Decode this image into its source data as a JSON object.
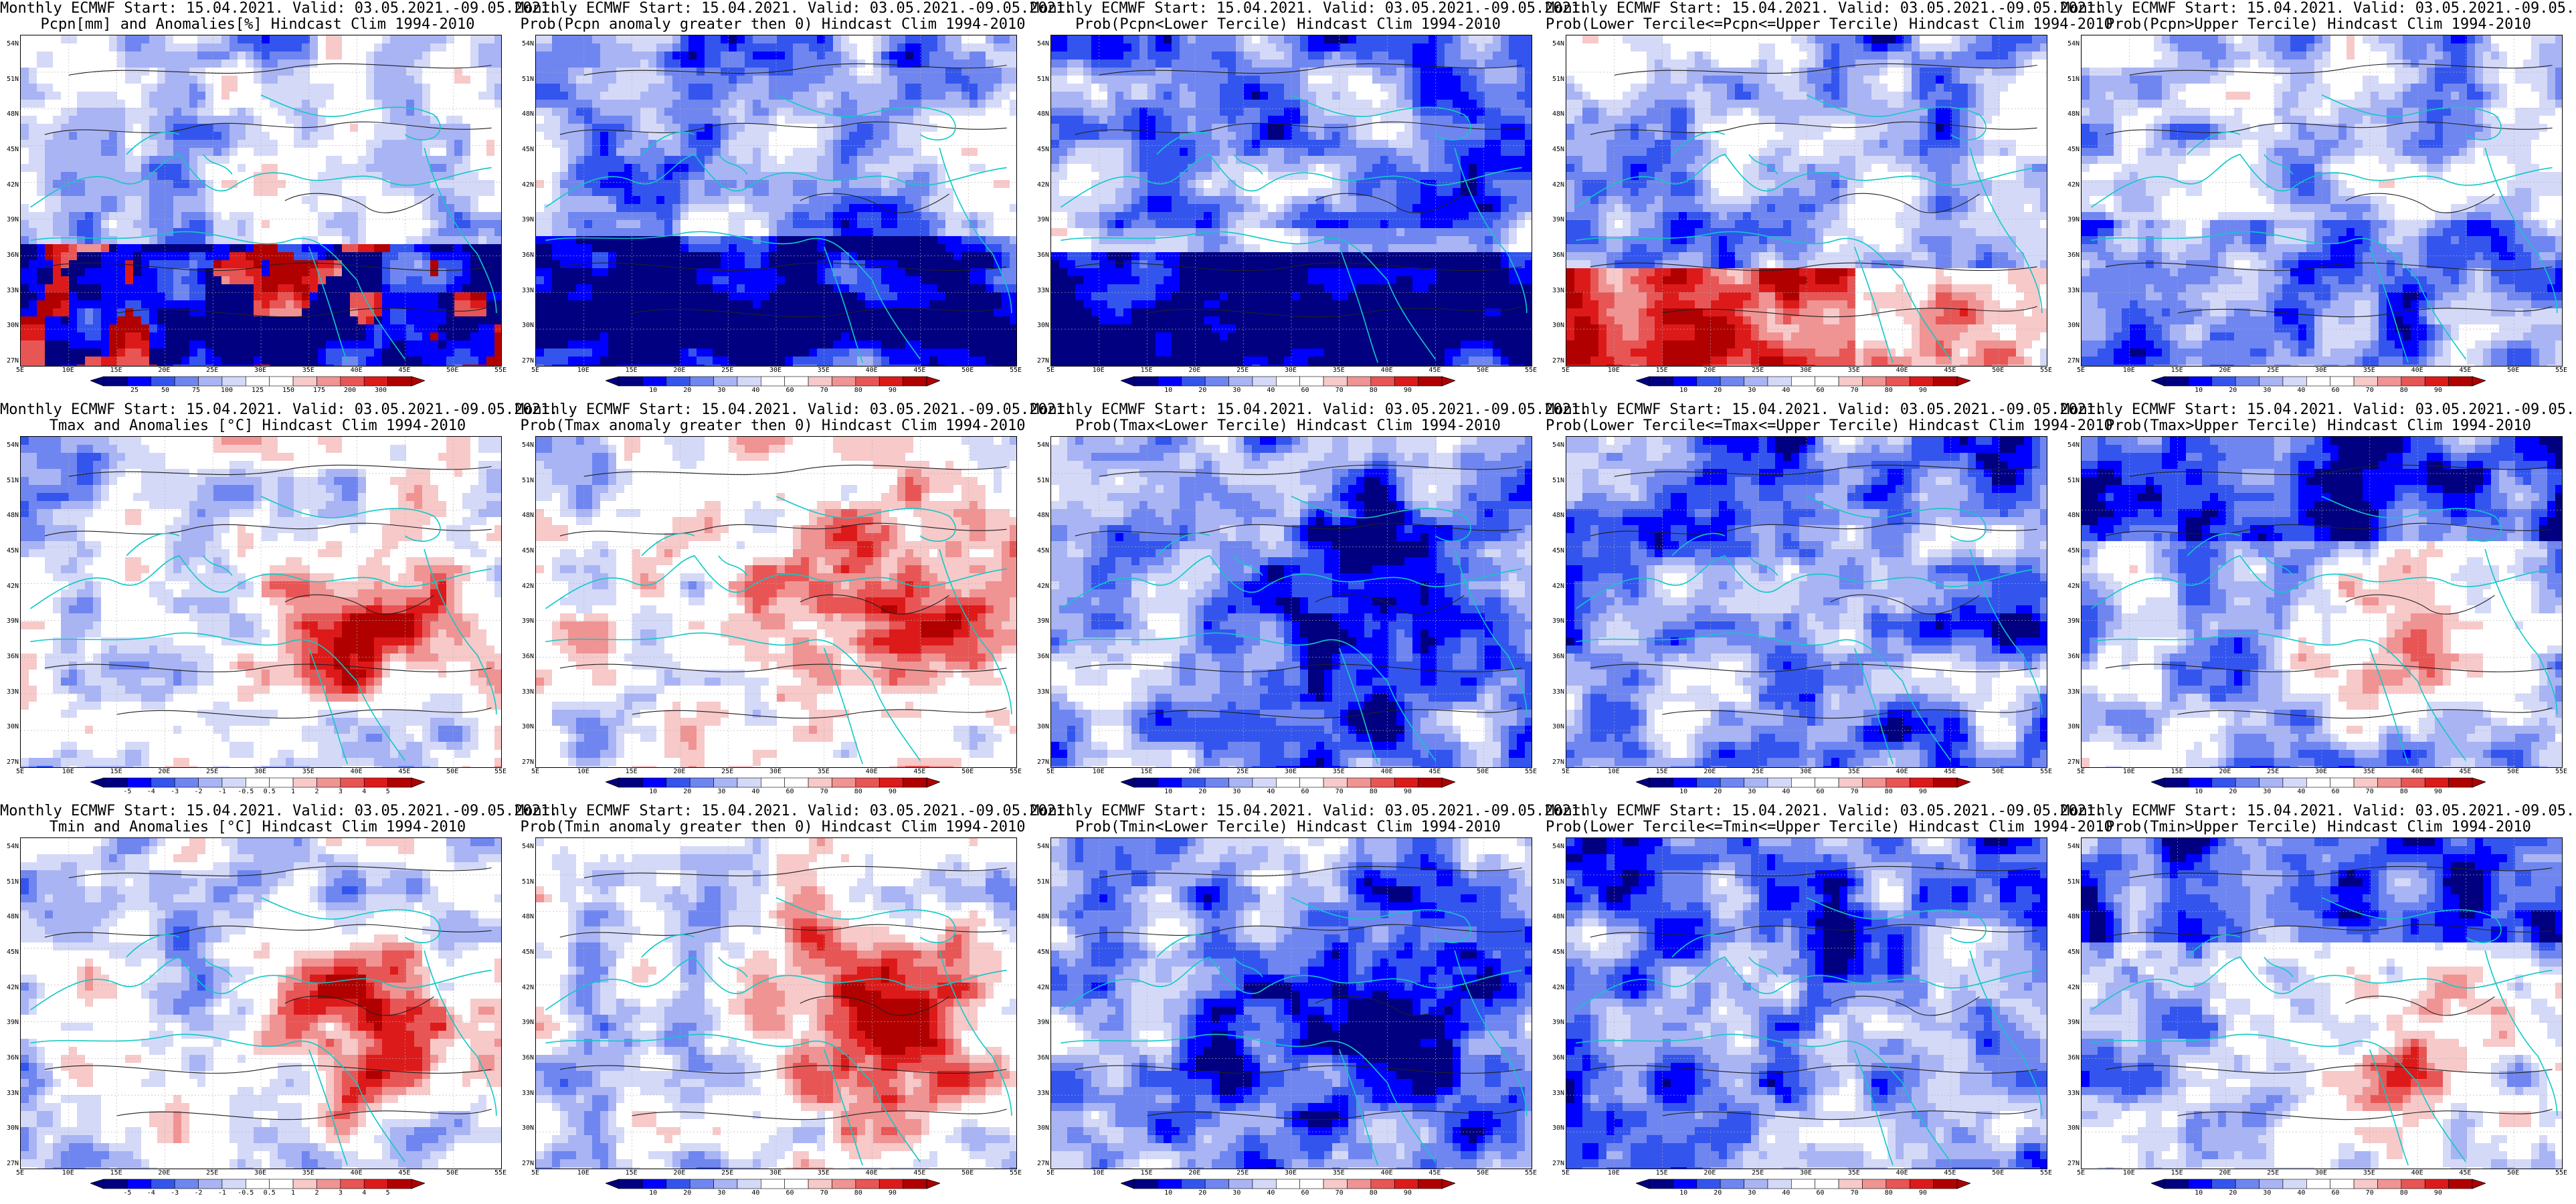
{
  "header_line": "Monthly ECMWF Start: 15.04.2021. Valid: 03.05.2021.-09.05.2021.",
  "lat_labels": [
    "54N",
    "51N",
    "48N",
    "45N",
    "42N",
    "39N",
    "36N",
    "33N",
    "30N",
    "27N"
  ],
  "lon_labels": [
    "5E",
    "10E",
    "15E",
    "20E",
    "25E",
    "30E",
    "35E",
    "40E",
    "45E",
    "50E",
    "55E"
  ],
  "palettes": {
    "prob": [
      "#000080",
      "#0000ff",
      "#3355ee",
      "#6f86f0",
      "#a9b4f4",
      "#d4d9f8",
      "#ffffff",
      "#ffffff",
      "#f7c9c9",
      "#f09393",
      "#e85555",
      "#dd1a1a",
      "#b00000"
    ],
    "anom": [
      "#000080",
      "#0000ff",
      "#3355ee",
      "#6f86f0",
      "#a9b4f4",
      "#d4d9f8",
      "#ffffff",
      "#ffffff",
      "#f7c9c9",
      "#f09393",
      "#e85555",
      "#dd1a1a",
      "#b00000"
    ],
    "pcpn": [
      "#000080",
      "#0000ff",
      "#3355ee",
      "#6f86f0",
      "#a9b4f4",
      "#d4d9f8",
      "#ffffff",
      "#ffffff",
      "#f7c9c9",
      "#f09393",
      "#e85555",
      "#dd1a1a",
      "#b00000"
    ]
  },
  "colorbar_ticks": {
    "prob": [
      "10",
      "20",
      "30",
      "40",
      "60",
      "70",
      "80",
      "90"
    ],
    "pcpn_anom": [
      "25",
      "50",
      "75",
      "100",
      "125",
      "150",
      "175",
      "200",
      "300"
    ],
    "temp_anom": [
      "-5",
      "-4",
      "-3",
      "-2",
      "-1",
      "-0.5",
      "0.5",
      "1",
      "2",
      "3",
      "4",
      "5"
    ]
  },
  "panels": [
    {
      "id": "p00",
      "title": "Pcpn[mm] and Anomalies[%] Hindcast Clim 1994-2010",
      "scale": "pcpn_anom",
      "field": "pcpn"
    },
    {
      "id": "p01",
      "title": "Prob(Pcpn anomaly greater then 0) Hindcast Clim 1994-2010",
      "scale": "prob",
      "field": "pcpn_pos"
    },
    {
      "id": "p02",
      "title": "Prob(Pcpn<Lower Tercile) Hindcast Clim 1994-2010",
      "scale": "prob",
      "field": "pcpn_low"
    },
    {
      "id": "p03",
      "title": "Prob(Lower Tercile<=Pcpn<=Upper Tercile) Hindcast Clim 1994-2010",
      "scale": "prob",
      "field": "pcpn_mid"
    },
    {
      "id": "p04",
      "title": "Prob(Pcpn>Upper Tercile) Hindcast Clim 1994-2010",
      "scale": "prob",
      "field": "pcpn_up"
    },
    {
      "id": "p10",
      "title": "Tmax and Anomalies [°C] Hindcast Clim 1994-2010",
      "scale": "temp_anom",
      "field": "warm"
    },
    {
      "id": "p11",
      "title": "Prob(Tmax anomaly greater then 0) Hindcast Clim 1994-2010",
      "scale": "prob",
      "field": "warm_strong"
    },
    {
      "id": "p12",
      "title": "Prob(Tmax<Lower Tercile) Hindcast Clim 1994-2010",
      "scale": "prob",
      "field": "cold_east"
    },
    {
      "id": "p13",
      "title": "Prob(Lower Tercile<=Tmax<=Upper Tercile) Hindcast Clim 1994-2010",
      "scale": "prob",
      "field": "mid_blue"
    },
    {
      "id": "p14",
      "title": "Prob(Tmax>Upper Tercile) Hindcast Clim 1994-2010",
      "scale": "prob",
      "field": "warm_weak_north_blue"
    },
    {
      "id": "p20",
      "title": "Tmin and Anomalies [°C] Hindcast Clim 1994-2010",
      "scale": "temp_anom",
      "field": "warm"
    },
    {
      "id": "p21",
      "title": "Prob(Tmin anomaly greater then 0) Hindcast Clim 1994-2010",
      "scale": "prob",
      "field": "warm_strong"
    },
    {
      "id": "p22",
      "title": "Prob(Tmin<Lower Tercile) Hindcast Clim 1994-2010",
      "scale": "prob",
      "field": "cold_east"
    },
    {
      "id": "p23",
      "title": "Prob(Lower Tercile<=Tmin<=Upper Tercile) Hindcast Clim 1994-2010",
      "scale": "prob",
      "field": "mid_blue"
    },
    {
      "id": "p24",
      "title": "Prob(Tmin>Upper Tercile) Hindcast Clim 1994-2010",
      "scale": "prob",
      "field": "warm_weak_north_blue"
    }
  ]
}
